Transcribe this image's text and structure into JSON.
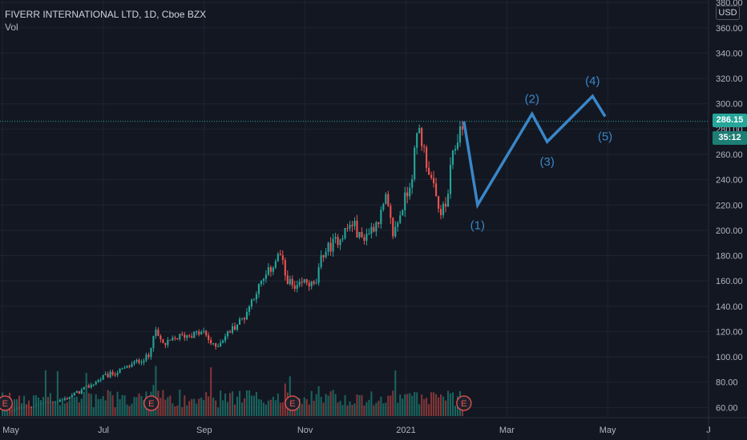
{
  "header": {
    "symbol_line": "FIVERR INTERNATIONAL LTD, 1D, Cboe BZX",
    "volume_label": "Vol"
  },
  "price_scale": {
    "currency_badge": "USD",
    "last_price": "286.15",
    "countdown": "35:12"
  },
  "colors": {
    "background": "#131722",
    "grid": "#1f2433",
    "up": "#26a69a",
    "down": "#ef5350",
    "volume_up": "#1b6b64",
    "volume_down": "#8f3a3a",
    "wave": "#3a86c8",
    "earnings": "#ef5350",
    "last_price_line": "#26a69a"
  },
  "chart_data": {
    "type": "candlestick",
    "title": "FIVERR INTERNATIONAL LTD, 1D, Cboe BZX",
    "y_axis_ticks": [
      60,
      80,
      100,
      120,
      140,
      160,
      180,
      200,
      220,
      240,
      260,
      280,
      300,
      320,
      340,
      360,
      380
    ],
    "y_tick_labels": [
      "60.00",
      "80.00",
      "100.00",
      "120.00",
      "140.00",
      "160.00",
      "180.00",
      "200.00",
      "220.00",
      "240.00",
      "260.00",
      "280.00",
      "300.00",
      "320.00",
      "340.00",
      "360.00",
      "380.00"
    ],
    "ylim": [
      52,
      382
    ],
    "x_axis_labels": [
      "May",
      "Jul",
      "Sep",
      "Nov",
      "2021",
      "Mar",
      "May",
      "J"
    ],
    "x_axis_label_months": [
      0,
      2,
      4,
      6,
      8,
      10,
      12,
      14
    ],
    "xlim_months": [
      -0.05,
      14.0
    ],
    "price_path": [
      {
        "m": 0.0,
        "p": 57
      },
      {
        "m": 0.4,
        "p": 60
      },
      {
        "m": 0.8,
        "p": 63
      },
      {
        "m": 1.2,
        "p": 66
      },
      {
        "m": 1.6,
        "p": 74
      },
      {
        "m": 2.0,
        "p": 84
      },
      {
        "m": 2.4,
        "p": 90
      },
      {
        "m": 2.7,
        "p": 97
      },
      {
        "m": 2.9,
        "p": 100
      },
      {
        "m": 3.0,
        "p": 121
      },
      {
        "m": 3.2,
        "p": 109
      },
      {
        "m": 3.5,
        "p": 116
      },
      {
        "m": 3.8,
        "p": 118
      },
      {
        "m": 4.0,
        "p": 119
      },
      {
        "m": 4.2,
        "p": 107
      },
      {
        "m": 4.5,
        "p": 120
      },
      {
        "m": 4.8,
        "p": 132
      },
      {
        "m": 5.0,
        "p": 150
      },
      {
        "m": 5.2,
        "p": 162
      },
      {
        "m": 5.4,
        "p": 175
      },
      {
        "m": 5.5,
        "p": 182
      },
      {
        "m": 5.6,
        "p": 165
      },
      {
        "m": 5.8,
        "p": 152
      },
      {
        "m": 6.0,
        "p": 160
      },
      {
        "m": 6.2,
        "p": 155
      },
      {
        "m": 6.35,
        "p": 182
      },
      {
        "m": 6.6,
        "p": 191
      },
      {
        "m": 6.8,
        "p": 200
      },
      {
        "m": 6.95,
        "p": 206
      },
      {
        "m": 7.1,
        "p": 193
      },
      {
        "m": 7.3,
        "p": 200
      },
      {
        "m": 7.5,
        "p": 212
      },
      {
        "m": 7.6,
        "p": 224
      },
      {
        "m": 7.75,
        "p": 196
      },
      {
        "m": 7.9,
        "p": 215
      },
      {
        "m": 8.1,
        "p": 240
      },
      {
        "m": 8.25,
        "p": 282
      },
      {
        "m": 8.35,
        "p": 264
      },
      {
        "m": 8.5,
        "p": 240
      },
      {
        "m": 8.65,
        "p": 215
      },
      {
        "m": 8.8,
        "p": 218
      },
      {
        "m": 8.9,
        "p": 252
      },
      {
        "m": 9.0,
        "p": 270
      },
      {
        "m": 9.12,
        "p": 286
      }
    ],
    "earnings_markers_months": [
      0.05,
      2.95,
      5.75,
      9.15
    ],
    "earnings_marker_label": "E",
    "elliott_wave": {
      "points": [
        {
          "m": 9.15,
          "p": 286
        },
        {
          "m": 9.42,
          "p": 220
        },
        {
          "m": 10.5,
          "p": 292
        },
        {
          "m": 10.8,
          "p": 270
        },
        {
          "m": 11.7,
          "p": 306
        },
        {
          "m": 11.95,
          "p": 290
        }
      ],
      "labels": [
        {
          "text": "(1)",
          "m": 9.42,
          "p": 220,
          "pos": "below"
        },
        {
          "text": "(2)",
          "m": 10.5,
          "p": 292,
          "pos": "above"
        },
        {
          "text": "(3)",
          "m": 10.8,
          "p": 270,
          "pos": "below"
        },
        {
          "text": "(4)",
          "m": 11.7,
          "p": 306,
          "pos": "above"
        },
        {
          "text": "(5)",
          "m": 11.95,
          "p": 290,
          "pos": "below"
        }
      ]
    },
    "last_price": 286.15
  }
}
